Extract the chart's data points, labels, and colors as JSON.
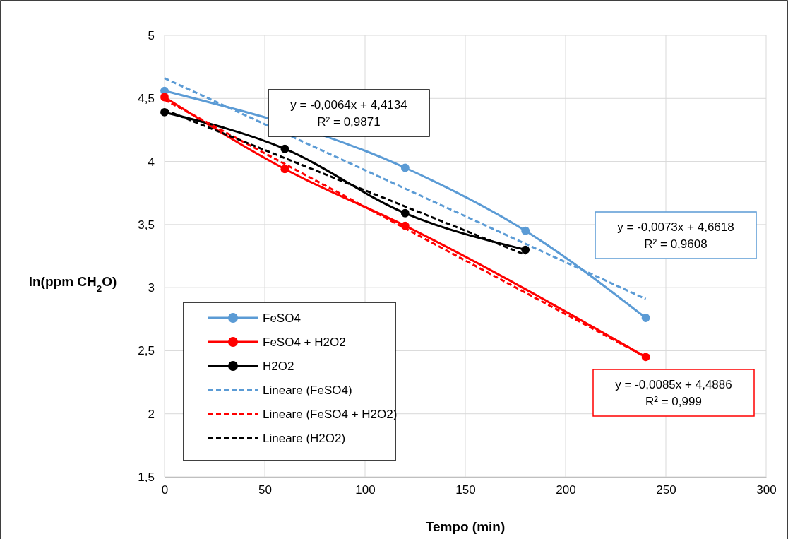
{
  "chart_data": {
    "type": "line",
    "xlabel": "Tempo (min)",
    "ylabel": "ln(ppm CH$_{2}$O)",
    "xlim": [
      0,
      300
    ],
    "xticks": [
      0,
      50,
      100,
      150,
      200,
      250,
      300
    ],
    "ylim": [
      1.5,
      5
    ],
    "yticks": [
      {
        "value": 1.5,
        "label": "1,5"
      },
      2,
      {
        "value": 2.5,
        "label": "2,5"
      },
      3,
      {
        "value": 3.5,
        "label": "3,5"
      },
      4,
      {
        "value": 4.5,
        "label": "4,5"
      },
      5
    ],
    "grid": true,
    "legend": "bottom left",
    "marker": "circle",
    "line_style": "solid",
    "series": [
      {
        "name": "FeSO4",
        "color": "#5b9bd5",
        "x": [
          0,
          120,
          180,
          240
        ],
        "values": [
          4.56,
          3.95,
          3.45,
          2.76
        ]
      },
      {
        "name": "FeSO4 + H2O2",
        "color": "#ff0000",
        "x": [
          0,
          60,
          120,
          240
        ],
        "values": [
          4.51,
          3.94,
          3.49,
          2.45
        ]
      },
      {
        "name": "H2O2",
        "color": "#000000",
        "x": [
          0,
          60,
          120,
          180
        ],
        "values": [
          4.39,
          4.1,
          3.59,
          3.3
        ]
      },
      {
        "name": "Lineare (FeSO4)",
        "color": "#5b9bd5",
        "x": [
          0,
          240
        ],
        "values": [
          4.66,
          2.91
        ],
        "marker": "none",
        "line_style": "dashed"
      },
      {
        "name": "Lineare (FeSO4 + H2O2)",
        "color": "#ff0000",
        "x": [
          0,
          240
        ],
        "values": [
          4.49,
          2.45
        ],
        "marker": "none",
        "line_style": "dashed"
      },
      {
        "name": "Lineare (H2O2)",
        "color": "#000000",
        "x": [
          0,
          180
        ],
        "values": [
          4.41,
          3.26
        ],
        "marker": "none",
        "line_style": "dashed"
      }
    ],
    "annotations": [
      "y = -0,0064x + 4,4134\nR² = 0,9871",
      "y = -0,0073x + 4,6618\nR² = 0,9608",
      "y = -0,0085x + 4,4886\nR² = 0,999"
    ]
  }
}
